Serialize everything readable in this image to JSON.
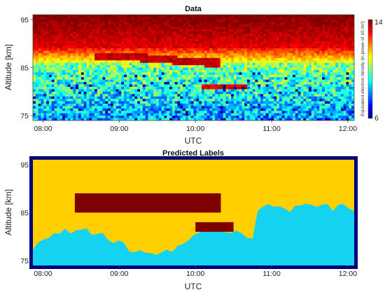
{
  "chart_data": [
    {
      "type": "heatmap",
      "title": "Data",
      "xlabel": "UTC",
      "ylabel": "Altitude [km]",
      "xlim": [
        "07:52",
        "12:05"
      ],
      "ylim": [
        74,
        96
      ],
      "xticks": [
        "08:00",
        "09:00",
        "10:00",
        "11:00",
        "12:00"
      ],
      "yticks": [
        "75",
        "85",
        "95"
      ],
      "colorbar": {
        "label": "Equivalent electron density (in power of 10 /m³)",
        "min": 6,
        "max": 14,
        "ticks": [
          "6",
          "14"
        ],
        "colormap": "jet"
      },
      "value_range": [
        6,
        14
      ],
      "description_of_values": "log10 electron density; high (13-14, red) above ~89 km, moderate (10-12, yellow/green) 86-89 km, low and noisy (7-10, cyan/blue) below 84 km; thin enhanced (red) layers near 86-87 km between 08:40 and 10:20 and near 81 km around 10:30"
    },
    {
      "type": "heatmap",
      "title": "Predicted Labels",
      "xlabel": "UTC",
      "ylabel": "Altitude [km]",
      "xlim": [
        "07:52",
        "12:05"
      ],
      "ylim": [
        74,
        96
      ],
      "xticks": [
        "08:00",
        "09:00",
        "10:00",
        "11:00",
        "12:00"
      ],
      "yticks": [
        "75",
        "85",
        "95"
      ],
      "classes": [
        {
          "id": 0,
          "color": "#00007f"
        },
        {
          "id": 1,
          "color": "#ffcf00"
        },
        {
          "id": 2,
          "color": "#7f0000"
        },
        {
          "id": 3,
          "color": "#14d2f0"
        }
      ],
      "regions": [
        {
          "class": 2,
          "t_start": "08:25",
          "t_end": "10:20",
          "alt_min": 85,
          "alt_max": 89
        },
        {
          "class": 2,
          "t_start": "10:00",
          "t_end": "10:30",
          "alt_min": 81,
          "alt_max": 83
        }
      ]
    }
  ],
  "colors": {
    "frame": "#00007f",
    "class_background": "#ffcf00",
    "class_layer": "#7f0000",
    "class_low": "#14d2f0"
  }
}
